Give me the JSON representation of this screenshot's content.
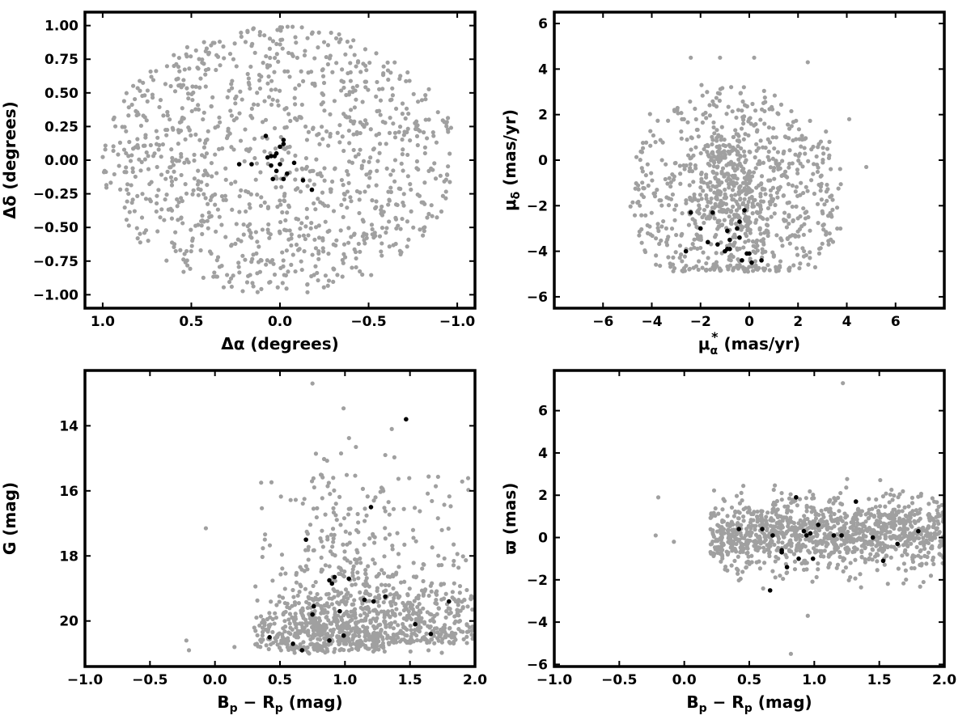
{
  "colors": {
    "background_points": "#a0a0a0",
    "members": "#000000",
    "frame": "#000000"
  },
  "chart_data": [
    {
      "type": "scatter",
      "panel": "top-left",
      "title": "",
      "xlabel": "Δα (degrees)",
      "ylabel": "Δδ (degrees)",
      "xlim": [
        1.1,
        -1.1
      ],
      "ylim": [
        -1.1,
        1.1
      ],
      "x_reversed": true,
      "xticks": [
        1.0,
        0.5,
        0.0,
        -0.5,
        -1.0
      ],
      "xtick_labels": [
        "1.0",
        "0.5",
        "0.0",
        "−0.5",
        "−1.0"
      ],
      "yticks": [
        1.0,
        0.75,
        0.5,
        0.25,
        0.0,
        -0.25,
        -0.5,
        -0.75,
        -1.0
      ],
      "ytick_labels": [
        "1.00",
        "0.75",
        "0.50",
        "0.25",
        "0.00",
        "−0.25",
        "−0.50",
        "−0.75",
        "−1.00"
      ],
      "grid": false,
      "legend": "none",
      "background_cloud": {
        "shape": "disk",
        "center": [
          0,
          0
        ],
        "radius": 1.0,
        "n": 1100,
        "color": "#a0a0a0"
      },
      "series": [
        {
          "role": "members",
          "color": "#000000",
          "x": [
            0.07,
            0.05,
            0.03,
            0.02,
            -0.02,
            -0.02,
            0.0,
            0.08,
            0.0,
            0.02,
            -0.04,
            -0.08,
            -0.13,
            0.23,
            0.16,
            -0.02,
            0.04,
            0.05,
            -0.18
          ],
          "y": [
            0.02,
            -0.04,
            0.03,
            0.05,
            0.12,
            0.15,
            0.1,
            0.18,
            -0.03,
            -0.08,
            -0.1,
            -0.02,
            -0.15,
            -0.03,
            -0.03,
            -0.14,
            -0.14,
            0.03,
            -0.22
          ]
        }
      ]
    },
    {
      "type": "scatter",
      "panel": "top-right",
      "title": "",
      "xlabel": "μα* (mas/yr)",
      "xlabel_parts": {
        "main": "μ",
        "sub": "α",
        "sup": "*",
        "rest": " (mas/yr)"
      },
      "ylabel": "μδ (mas/yr)",
      "ylabel_parts": {
        "main": "μ",
        "sub": "δ",
        "rest": " (mas/yr)"
      },
      "xlim": [
        -8,
        8
      ],
      "ylim": [
        -6.5,
        6.5
      ],
      "xticks": [
        -6,
        -4,
        -2,
        0,
        2,
        4,
        6
      ],
      "xtick_labels": [
        "−6",
        "−4",
        "−2",
        "0",
        "2",
        "4",
        "6"
      ],
      "yticks": [
        -6,
        -4,
        -2,
        0,
        2,
        4,
        6
      ],
      "ytick_labels": [
        "−6",
        "−4",
        "−2",
        "0",
        "2",
        "4",
        "6"
      ],
      "grid": false,
      "legend": "none",
      "background_cloud": {
        "shape": "disk-clipped",
        "center": [
          -0.5,
          -1.5
        ],
        "radius": 4.5,
        "ylim": [
          -4.9,
          4.5
        ],
        "n": 1000,
        "color": "#a0a0a0"
      },
      "series": [
        {
          "role": "members",
          "color": "#000000",
          "x": [
            -1.5,
            -2.4,
            -2.0,
            -2.6,
            -1.7,
            -1.3,
            -0.9,
            -0.8,
            -0.8,
            -0.4,
            -0.4,
            -0.2,
            -0.1,
            0.0,
            0.1,
            -1.0,
            -0.9,
            -0.5,
            -0.3,
            0.5
          ],
          "y": [
            -2.3,
            -2.3,
            -3.0,
            -4.0,
            -3.6,
            -3.7,
            -3.1,
            -3.5,
            -3.9,
            -2.7,
            -3.4,
            -2.2,
            -4.1,
            -4.1,
            -4.5,
            -4.0,
            -3.9,
            -3.0,
            -4.4,
            -4.4
          ]
        }
      ]
    },
    {
      "type": "scatter",
      "panel": "bottom-left",
      "title": "",
      "xlabel": "Bp − Rp (mag)",
      "xlabel_parts": {
        "a": "B",
        "asub": "p",
        "op": " − ",
        "b": "R",
        "bsub": "p",
        "rest": " (mag)"
      },
      "ylabel": "G (mag)",
      "xlim": [
        -1.0,
        2.0
      ],
      "ylim": [
        21.4,
        12.3
      ],
      "y_reversed": true,
      "xticks": [
        -1.0,
        -0.5,
        0.0,
        0.5,
        1.0,
        1.5,
        2.0
      ],
      "xtick_labels": [
        "−1.0",
        "−0.5",
        "0.0",
        "0.5",
        "1.0",
        "1.5",
        "2.0"
      ],
      "yticks": [
        20,
        18,
        16,
        14
      ],
      "ytick_labels": [
        "20",
        "18",
        "16",
        "14"
      ],
      "grid": false,
      "legend": "none",
      "background_cloud": {
        "shape": "cmd",
        "xrange": [
          0.25,
          2.0
        ],
        "yrange": [
          12.7,
          21.0
        ],
        "n": 1150,
        "color": "#a0a0a0"
      },
      "series": [
        {
          "role": "members",
          "color": "#000000",
          "x": [
            0.67,
            0.6,
            0.42,
            0.88,
            0.99,
            0.75,
            0.76,
            0.96,
            0.88,
            0.9,
            0.92,
            1.03,
            1.15,
            1.22,
            1.31,
            1.54,
            1.66,
            1.8,
            0.7,
            1.2,
            1.47
          ],
          "y": [
            20.9,
            20.7,
            20.5,
            20.6,
            20.45,
            19.8,
            19.55,
            19.7,
            18.75,
            18.85,
            18.65,
            18.7,
            19.35,
            19.4,
            19.25,
            20.1,
            20.4,
            19.4,
            17.5,
            16.5,
            13.8
          ]
        }
      ]
    },
    {
      "type": "scatter",
      "panel": "bottom-right",
      "title": "",
      "xlabel": "Bp − Rp (mag)",
      "xlabel_parts": {
        "a": "B",
        "asub": "p",
        "op": " − ",
        "b": "R",
        "bsub": "p",
        "rest": " (mag)"
      },
      "ylabel": "ϖ (mas)",
      "xlim": [
        -1.0,
        2.0
      ],
      "ylim": [
        -6.1,
        7.9
      ],
      "xticks": [
        -1.0,
        -0.5,
        0.0,
        0.5,
        1.0,
        1.5,
        2.0
      ],
      "xtick_labels": [
        "−1.0",
        "−0.5",
        "0.0",
        "0.5",
        "1.0",
        "1.5",
        "2.0"
      ],
      "yticks": [
        -6,
        -4,
        -2,
        0,
        2,
        4,
        6
      ],
      "ytick_labels": [
        "−6",
        "−4",
        "−2",
        "0",
        "2",
        "4",
        "6"
      ],
      "grid": false,
      "legend": "none",
      "background_cloud": {
        "shape": "band",
        "xrange": [
          0.2,
          2.0
        ],
        "center": 0.2,
        "n": 1150,
        "color": "#a0a0a0"
      },
      "series": [
        {
          "role": "members",
          "color": "#000000",
          "x": [
            0.42,
            0.6,
            0.68,
            0.75,
            0.75,
            0.79,
            0.66,
            0.86,
            0.88,
            0.92,
            0.94,
            0.97,
            0.99,
            1.03,
            1.15,
            1.21,
            1.32,
            1.45,
            1.53,
            1.64,
            1.8
          ],
          "y": [
            0.4,
            0.4,
            0.1,
            -0.6,
            -0.7,
            -1.4,
            -2.5,
            1.9,
            -1.0,
            0.3,
            0.1,
            0.2,
            -1.0,
            0.6,
            0.1,
            0.1,
            1.7,
            0.0,
            -1.1,
            -0.3,
            0.3
          ]
        }
      ]
    }
  ]
}
